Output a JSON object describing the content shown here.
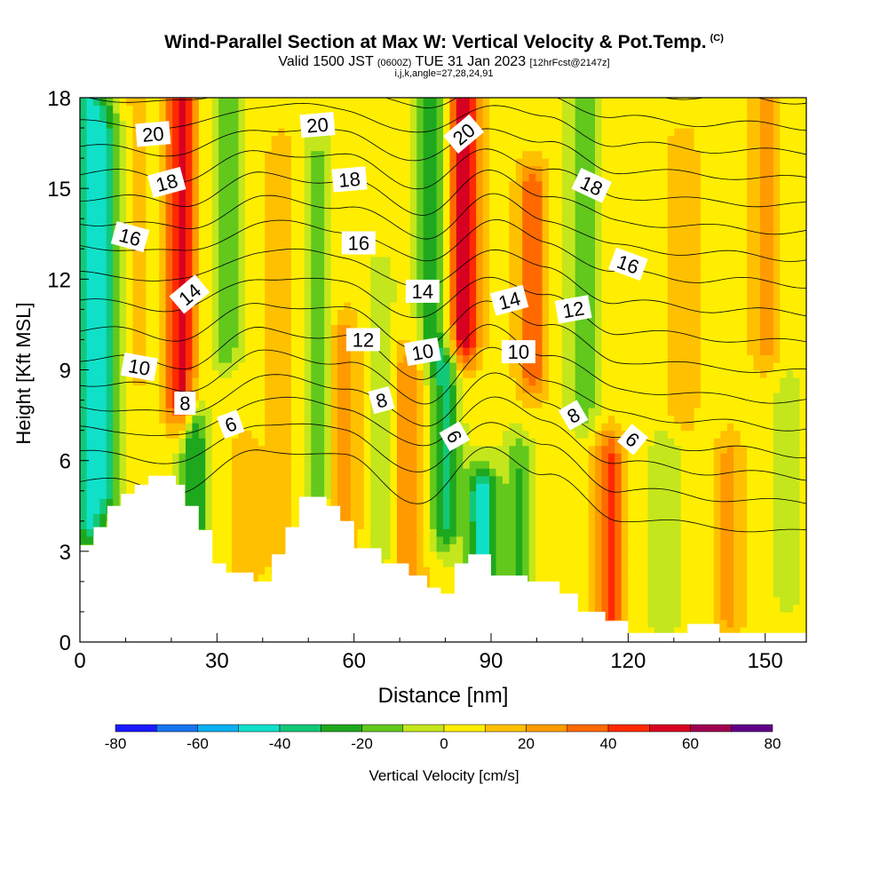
{
  "title": {
    "main": "Wind-Parallel Section at Max W: Vertical Velocity & Pot.Temp.",
    "copyright": "(C)",
    "valid_prefix": "Valid 1500 JST",
    "valid_utc": "(0600Z)",
    "valid_date": "TUE 31 Jan 2023",
    "forecast": "[12hrFcst@2147z]",
    "ijk": "i,j,k,angle=27,28,24,91"
  },
  "chart_data": {
    "type": "heatmap",
    "xlabel": "Distance [nm]",
    "ylabel": "Height [Kft MSL]",
    "xlim": [
      0,
      159
    ],
    "ylim": [
      0,
      18
    ],
    "xticks": [
      0,
      30,
      60,
      90,
      120,
      150
    ],
    "yticks": [
      0,
      3,
      6,
      9,
      12,
      15,
      18
    ],
    "colorbar": {
      "label": "Vertical Velocity [cm/s]",
      "ticks": [
        -80,
        -60,
        -40,
        -20,
        0,
        20,
        40,
        60,
        80
      ],
      "levels": [
        -80,
        -70,
        -60,
        -50,
        -40,
        -30,
        -20,
        -10,
        0,
        10,
        20,
        30,
        40,
        50,
        60,
        70,
        80
      ],
      "colors": [
        "#1a1aff",
        "#1673f0",
        "#0ab0f0",
        "#10e0c8",
        "#12c878",
        "#1ea81e",
        "#62c81c",
        "#c4e61c",
        "#ffee00",
        "#ffc000",
        "#ff9a00",
        "#ff6a00",
        "#ff2a00",
        "#d80020",
        "#a00050",
        "#600088"
      ]
    },
    "velocity_field": {
      "background": 5,
      "bands": [
        {
          "x": 2,
          "z0": 4,
          "z1": 18,
          "w": -45
        },
        {
          "x": 6,
          "z0": 5,
          "z1": 17,
          "w": -30
        },
        {
          "x": 12,
          "z0": 9,
          "z1": 18,
          "w": 8
        },
        {
          "x": 22,
          "z0": 8,
          "z1": 18,
          "w": 50
        },
        {
          "x": 25,
          "z0": 4,
          "z1": 7,
          "w": -35
        },
        {
          "x": 32,
          "z0": 10,
          "z1": 18,
          "w": -25
        },
        {
          "x": 36,
          "z0": 2,
          "z1": 6,
          "w": 15
        },
        {
          "x": 44,
          "z0": 3,
          "z1": 16,
          "w": 12
        },
        {
          "x": 52,
          "z0": 5,
          "z1": 16,
          "w": -18
        },
        {
          "x": 58,
          "z0": 4,
          "z1": 10,
          "w": 22
        },
        {
          "x": 66,
          "z0": 3,
          "z1": 12,
          "w": -10
        },
        {
          "x": 72,
          "z0": 2,
          "z1": 9,
          "w": 25
        },
        {
          "x": 77,
          "z0": 10,
          "z1": 18,
          "w": -30
        },
        {
          "x": 80,
          "z0": 4,
          "z1": 9,
          "w": -38
        },
        {
          "x": 84,
          "z0": 10,
          "z1": 18,
          "w": 55
        },
        {
          "x": 88,
          "z0": 2,
          "z1": 5,
          "w": -50
        },
        {
          "x": 96,
          "z0": 2,
          "z1": 6,
          "w": -25
        },
        {
          "x": 99,
          "z0": 9,
          "z1": 15,
          "w": 32
        },
        {
          "x": 110,
          "z0": 8,
          "z1": 18,
          "w": -25
        },
        {
          "x": 116,
          "z0": 1,
          "z1": 6,
          "w": 38
        },
        {
          "x": 128,
          "z0": 1,
          "z1": 6,
          "w": -15
        },
        {
          "x": 132,
          "z0": 8,
          "z1": 16,
          "w": 15
        },
        {
          "x": 142,
          "z0": 1,
          "z1": 6,
          "w": 18
        },
        {
          "x": 150,
          "z0": 10,
          "z1": 18,
          "w": 20
        },
        {
          "x": 155,
          "z0": 2,
          "z1": 8,
          "w": -12
        }
      ]
    },
    "terrain": [
      {
        "x": 0,
        "z": 3.2
      },
      {
        "x": 3,
        "z": 3.8
      },
      {
        "x": 6,
        "z": 4.5
      },
      {
        "x": 9,
        "z": 4.9
      },
      {
        "x": 12,
        "z": 5.2
      },
      {
        "x": 15,
        "z": 5.5
      },
      {
        "x": 21,
        "z": 5.2
      },
      {
        "x": 23,
        "z": 4.5
      },
      {
        "x": 26,
        "z": 3.7
      },
      {
        "x": 29,
        "z": 2.6
      },
      {
        "x": 32,
        "z": 2.3
      },
      {
        "x": 38,
        "z": 2.0
      },
      {
        "x": 42,
        "z": 2.9
      },
      {
        "x": 45,
        "z": 3.8
      },
      {
        "x": 48,
        "z": 4.8
      },
      {
        "x": 54,
        "z": 4.5
      },
      {
        "x": 57,
        "z": 4.0
      },
      {
        "x": 60,
        "z": 3.1
      },
      {
        "x": 66,
        "z": 2.6
      },
      {
        "x": 72,
        "z": 2.2
      },
      {
        "x": 76,
        "z": 1.8
      },
      {
        "x": 79,
        "z": 1.6
      },
      {
        "x": 82,
        "z": 2.6
      },
      {
        "x": 85,
        "z": 2.9
      },
      {
        "x": 90,
        "z": 2.2
      },
      {
        "x": 98,
        "z": 2.0
      },
      {
        "x": 105,
        "z": 1.6
      },
      {
        "x": 109,
        "z": 1.0
      },
      {
        "x": 115,
        "z": 0.7
      },
      {
        "x": 120,
        "z": 0.3
      },
      {
        "x": 133,
        "z": 0.6
      },
      {
        "x": 140,
        "z": 0.3
      },
      {
        "x": 159,
        "z": 0.3
      }
    ],
    "theta_contours": {
      "levels": [
        6,
        7,
        8,
        9,
        10,
        11,
        12,
        13,
        14,
        15,
        16,
        17,
        18,
        19,
        20,
        21,
        22
      ],
      "baseline_heights": [
        5.9,
        6.8,
        7.6,
        8.3,
        9.1,
        9.9,
        10.8,
        11.7,
        12.6,
        13.5,
        14.3,
        15.1,
        15.9,
        16.7,
        17.5,
        18.3,
        19.1
      ],
      "perturbations": [
        {
          "x": 8,
          "dz": -0.6
        },
        {
          "x": 22,
          "dz": -0.9
        },
        {
          "x": 40,
          "dz": 0.5
        },
        {
          "x": 58,
          "dz": 0.2
        },
        {
          "x": 75,
          "dz": -1.3
        },
        {
          "x": 90,
          "dz": 0.6
        },
        {
          "x": 102,
          "dz": -0.4
        },
        {
          "x": 118,
          "dz": -1.8
        },
        {
          "x": 140,
          "dz": -2.1
        },
        {
          "x": 159,
          "dz": -2.3
        }
      ],
      "labels": [
        {
          "text": "20",
          "x": 16,
          "z": 16.8,
          "angle": -5
        },
        {
          "text": "18",
          "x": 19,
          "z": 15.2,
          "angle": -15
        },
        {
          "text": "16",
          "x": 11,
          "z": 13.4,
          "angle": 15
        },
        {
          "text": "14",
          "x": 24,
          "z": 11.5,
          "angle": -40
        },
        {
          "text": "10",
          "x": 13,
          "z": 9.1,
          "angle": 10
        },
        {
          "text": "8",
          "x": 23,
          "z": 7.9,
          "angle": 0
        },
        {
          "text": "6",
          "x": 33,
          "z": 7.2,
          "angle": -20
        },
        {
          "text": "20",
          "x": 52,
          "z": 17.1,
          "angle": -5
        },
        {
          "text": "18",
          "x": 59,
          "z": 15.3,
          "angle": -5
        },
        {
          "text": "16",
          "x": 61,
          "z": 13.2,
          "angle": 0
        },
        {
          "text": "14",
          "x": 75,
          "z": 11.6,
          "angle": 0
        },
        {
          "text": "12",
          "x": 62,
          "z": 10.0,
          "angle": 0
        },
        {
          "text": "10",
          "x": 75,
          "z": 9.6,
          "angle": -10
        },
        {
          "text": "8",
          "x": 66,
          "z": 8.0,
          "angle": -15
        },
        {
          "text": "6",
          "x": 82,
          "z": 6.8,
          "angle": 60
        },
        {
          "text": "20",
          "x": 84,
          "z": 16.8,
          "angle": -40
        },
        {
          "text": "18",
          "x": 112,
          "z": 15.1,
          "angle": 25
        },
        {
          "text": "16",
          "x": 120,
          "z": 12.5,
          "angle": 20
        },
        {
          "text": "14",
          "x": 94,
          "z": 11.3,
          "angle": -15
        },
        {
          "text": "12",
          "x": 108,
          "z": 11.0,
          "angle": -10
        },
        {
          "text": "10",
          "x": 96,
          "z": 9.6,
          "angle": 0
        },
        {
          "text": "8",
          "x": 108,
          "z": 7.5,
          "angle": -30
        },
        {
          "text": "6",
          "x": 121,
          "z": 6.7,
          "angle": 40
        }
      ]
    }
  }
}
